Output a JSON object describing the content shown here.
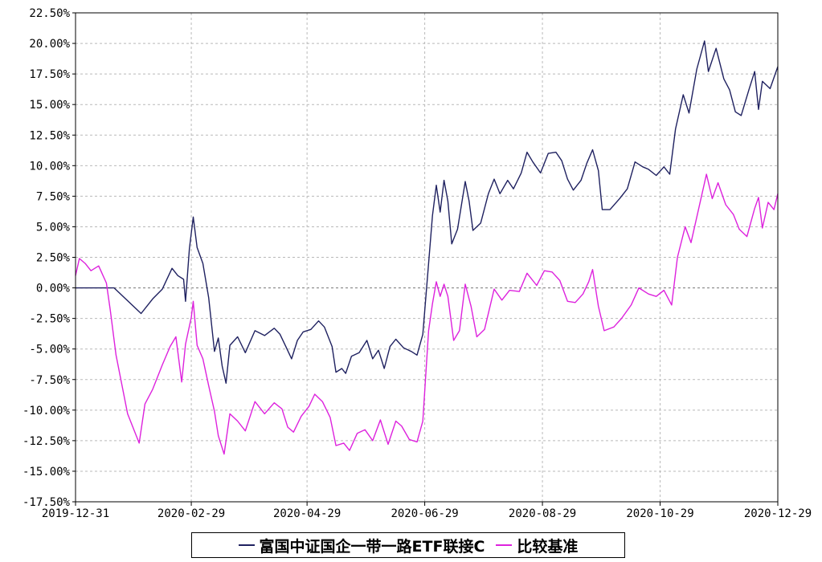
{
  "chart_data": {
    "type": "line",
    "y_ticks": [
      "22.50%",
      "20.00%",
      "17.50%",
      "15.00%",
      "12.50%",
      "10.00%",
      "7.50%",
      "5.00%",
      "2.50%",
      "0.00%",
      "-2.50%",
      "-5.00%",
      "-7.50%",
      "-10.00%",
      "-12.50%",
      "-15.00%",
      "-17.50%"
    ],
    "x_ticks": [
      "2019-12-31",
      "2020-02-29",
      "2020-04-29",
      "2020-06-29",
      "2020-08-29",
      "2020-10-29",
      "2020-12-29"
    ],
    "ylim": [
      -17.5,
      22.5
    ],
    "xlim": [
      "2019-12-31",
      "2020-12-29"
    ],
    "grid": true,
    "legend_placement": "bottom",
    "series": [
      {
        "name": "富国中证国企一带一路ETF联接C",
        "color": "#1f2160",
        "points": [
          [
            "2019-12-31",
            0.0
          ],
          [
            "2020-01-10",
            0.0
          ],
          [
            "2020-01-20",
            0.0
          ],
          [
            "2020-02-03",
            -2.1
          ],
          [
            "2020-02-09",
            -0.9
          ],
          [
            "2020-02-14",
            -0.1
          ],
          [
            "2020-02-19",
            1.6
          ],
          [
            "2020-02-22",
            1.0
          ],
          [
            "2020-02-25",
            0.7
          ],
          [
            "2020-02-26",
            -1.1
          ],
          [
            "2020-02-28",
            3.2
          ],
          [
            "2020-03-01",
            5.8
          ],
          [
            "2020-03-03",
            3.3
          ],
          [
            "2020-03-06",
            2.0
          ],
          [
            "2020-03-09",
            -0.8
          ],
          [
            "2020-03-12",
            -5.2
          ],
          [
            "2020-03-14",
            -4.1
          ],
          [
            "2020-03-16",
            -6.4
          ],
          [
            "2020-03-18",
            -7.8
          ],
          [
            "2020-03-20",
            -4.7
          ],
          [
            "2020-03-24",
            -4.0
          ],
          [
            "2020-03-28",
            -5.3
          ],
          [
            "2020-04-02",
            -3.5
          ],
          [
            "2020-04-07",
            -3.9
          ],
          [
            "2020-04-12",
            -3.3
          ],
          [
            "2020-04-15",
            -3.8
          ],
          [
            "2020-04-18",
            -4.8
          ],
          [
            "2020-04-21",
            -5.8
          ],
          [
            "2020-04-24",
            -4.3
          ],
          [
            "2020-04-27",
            -3.6
          ],
          [
            "2020-05-01",
            -3.4
          ],
          [
            "2020-05-05",
            -2.7
          ],
          [
            "2020-05-08",
            -3.2
          ],
          [
            "2020-05-12",
            -4.8
          ],
          [
            "2020-05-14",
            -6.9
          ],
          [
            "2020-05-17",
            -6.6
          ],
          [
            "2020-05-19",
            -7.0
          ],
          [
            "2020-05-22",
            -5.6
          ],
          [
            "2020-05-26",
            -5.3
          ],
          [
            "2020-05-30",
            -4.3
          ],
          [
            "2020-06-02",
            -5.8
          ],
          [
            "2020-06-05",
            -5.1
          ],
          [
            "2020-06-08",
            -6.6
          ],
          [
            "2020-06-11",
            -4.8
          ],
          [
            "2020-06-14",
            -4.2
          ],
          [
            "2020-06-18",
            -4.9
          ],
          [
            "2020-06-22",
            -5.2
          ],
          [
            "2020-06-25",
            -5.5
          ],
          [
            "2020-06-28",
            -3.8
          ],
          [
            "2020-07-01",
            2.0
          ],
          [
            "2020-07-03",
            5.9
          ],
          [
            "2020-07-05",
            8.4
          ],
          [
            "2020-07-07",
            6.2
          ],
          [
            "2020-07-09",
            8.8
          ],
          [
            "2020-07-11",
            7.1
          ],
          [
            "2020-07-13",
            3.6
          ],
          [
            "2020-07-16",
            4.8
          ],
          [
            "2020-07-20",
            8.7
          ],
          [
            "2020-07-22",
            7.1
          ],
          [
            "2020-07-24",
            4.7
          ],
          [
            "2020-07-28",
            5.3
          ],
          [
            "2020-08-01",
            7.7
          ],
          [
            "2020-08-04",
            8.9
          ],
          [
            "2020-08-07",
            7.7
          ],
          [
            "2020-08-11",
            8.8
          ],
          [
            "2020-08-14",
            8.1
          ],
          [
            "2020-08-18",
            9.4
          ],
          [
            "2020-08-21",
            11.1
          ],
          [
            "2020-08-24",
            10.3
          ],
          [
            "2020-08-28",
            9.4
          ],
          [
            "2020-09-01",
            11.0
          ],
          [
            "2020-09-05",
            11.1
          ],
          [
            "2020-09-08",
            10.4
          ],
          [
            "2020-09-11",
            8.9
          ],
          [
            "2020-09-14",
            8.0
          ],
          [
            "2020-09-18",
            8.8
          ],
          [
            "2020-09-21",
            10.2
          ],
          [
            "2020-09-24",
            11.3
          ],
          [
            "2020-09-27",
            9.6
          ],
          [
            "2020-09-29",
            6.4
          ],
          [
            "2020-10-03",
            6.4
          ],
          [
            "2020-10-08",
            7.3
          ],
          [
            "2020-10-12",
            8.1
          ],
          [
            "2020-10-16",
            10.3
          ],
          [
            "2020-10-20",
            9.9
          ],
          [
            "2020-10-23",
            9.7
          ],
          [
            "2020-10-27",
            9.2
          ],
          [
            "2020-10-31",
            9.9
          ],
          [
            "2020-11-03",
            9.3
          ],
          [
            "2020-11-06",
            13.0
          ],
          [
            "2020-11-10",
            15.8
          ],
          [
            "2020-11-13",
            14.3
          ],
          [
            "2020-11-17",
            17.9
          ],
          [
            "2020-11-21",
            20.2
          ],
          [
            "2020-11-23",
            17.7
          ],
          [
            "2020-11-27",
            19.6
          ],
          [
            "2020-12-01",
            17.1
          ],
          [
            "2020-12-04",
            16.2
          ],
          [
            "2020-12-07",
            14.4
          ],
          [
            "2020-12-10",
            14.1
          ],
          [
            "2020-12-14",
            16.2
          ],
          [
            "2020-12-17",
            17.7
          ],
          [
            "2020-12-19",
            14.6
          ],
          [
            "2020-12-21",
            16.9
          ],
          [
            "2020-12-25",
            16.3
          ],
          [
            "2020-12-29",
            18.1
          ]
        ]
      },
      {
        "name": "比较基准",
        "color": "#dd22dd",
        "points": [
          [
            "2019-12-31",
            1.0
          ],
          [
            "2020-01-02",
            2.4
          ],
          [
            "2020-01-05",
            2.0
          ],
          [
            "2020-01-08",
            1.4
          ],
          [
            "2020-01-12",
            1.8
          ],
          [
            "2020-01-16",
            0.4
          ],
          [
            "2020-01-18",
            -1.8
          ],
          [
            "2020-01-21",
            -5.5
          ],
          [
            "2020-01-27",
            -10.3
          ],
          [
            "2020-02-02",
            -12.7
          ],
          [
            "2020-02-05",
            -9.5
          ],
          [
            "2020-02-09",
            -8.3
          ],
          [
            "2020-02-14",
            -6.3
          ],
          [
            "2020-02-18",
            -4.8
          ],
          [
            "2020-02-21",
            -4.0
          ],
          [
            "2020-02-24",
            -7.7
          ],
          [
            "2020-02-26",
            -4.6
          ],
          [
            "2020-02-29",
            -2.4
          ],
          [
            "2020-03-01",
            -1.1
          ],
          [
            "2020-03-03",
            -4.7
          ],
          [
            "2020-03-06",
            -5.8
          ],
          [
            "2020-03-09",
            -8.0
          ],
          [
            "2020-03-12",
            -10.1
          ],
          [
            "2020-03-14",
            -12.1
          ],
          [
            "2020-03-17",
            -13.6
          ],
          [
            "2020-03-20",
            -10.3
          ],
          [
            "2020-03-24",
            -10.9
          ],
          [
            "2020-03-28",
            -11.7
          ],
          [
            "2020-04-02",
            -9.3
          ],
          [
            "2020-04-07",
            -10.3
          ],
          [
            "2020-04-12",
            -9.4
          ],
          [
            "2020-04-16",
            -9.9
          ],
          [
            "2020-04-19",
            -11.4
          ],
          [
            "2020-04-22",
            -11.8
          ],
          [
            "2020-04-26",
            -10.5
          ],
          [
            "2020-04-30",
            -9.7
          ],
          [
            "2020-05-03",
            -8.7
          ],
          [
            "2020-05-07",
            -9.3
          ],
          [
            "2020-05-11",
            -10.6
          ],
          [
            "2020-05-14",
            -12.9
          ],
          [
            "2020-05-18",
            -12.7
          ],
          [
            "2020-05-21",
            -13.3
          ],
          [
            "2020-05-25",
            -11.9
          ],
          [
            "2020-05-29",
            -11.6
          ],
          [
            "2020-06-02",
            -12.5
          ],
          [
            "2020-06-06",
            -10.8
          ],
          [
            "2020-06-10",
            -12.8
          ],
          [
            "2020-06-14",
            -10.9
          ],
          [
            "2020-06-17",
            -11.3
          ],
          [
            "2020-06-21",
            -12.4
          ],
          [
            "2020-06-25",
            -12.6
          ],
          [
            "2020-06-28",
            -10.9
          ],
          [
            "2020-07-01",
            -3.5
          ],
          [
            "2020-07-03",
            -1.3
          ],
          [
            "2020-07-05",
            0.5
          ],
          [
            "2020-07-07",
            -0.7
          ],
          [
            "2020-07-09",
            0.3
          ],
          [
            "2020-07-11",
            -0.7
          ],
          [
            "2020-07-14",
            -4.3
          ],
          [
            "2020-07-17",
            -3.5
          ],
          [
            "2020-07-20",
            0.3
          ],
          [
            "2020-07-23",
            -1.5
          ],
          [
            "2020-07-26",
            -4.0
          ],
          [
            "2020-07-30",
            -3.4
          ],
          [
            "2020-08-04",
            -0.1
          ],
          [
            "2020-08-08",
            -1.0
          ],
          [
            "2020-08-12",
            -0.2
          ],
          [
            "2020-08-17",
            -0.3
          ],
          [
            "2020-08-21",
            1.2
          ],
          [
            "2020-08-26",
            0.2
          ],
          [
            "2020-08-30",
            1.4
          ],
          [
            "2020-09-03",
            1.3
          ],
          [
            "2020-09-07",
            0.6
          ],
          [
            "2020-09-11",
            -1.1
          ],
          [
            "2020-09-15",
            -1.2
          ],
          [
            "2020-09-19",
            -0.5
          ],
          [
            "2020-09-22",
            0.5
          ],
          [
            "2020-09-24",
            1.5
          ],
          [
            "2020-09-27",
            -1.5
          ],
          [
            "2020-09-30",
            -3.5
          ],
          [
            "2020-10-05",
            -3.2
          ],
          [
            "2020-10-09",
            -2.5
          ],
          [
            "2020-10-14",
            -1.4
          ],
          [
            "2020-10-18",
            0.0
          ],
          [
            "2020-10-23",
            -0.5
          ],
          [
            "2020-10-27",
            -0.7
          ],
          [
            "2020-10-31",
            -0.2
          ],
          [
            "2020-11-04",
            -1.4
          ],
          [
            "2020-11-07",
            2.5
          ],
          [
            "2020-11-11",
            5.0
          ],
          [
            "2020-11-14",
            3.7
          ],
          [
            "2020-11-18",
            6.5
          ],
          [
            "2020-11-22",
            9.3
          ],
          [
            "2020-11-25",
            7.3
          ],
          [
            "2020-11-28",
            8.6
          ],
          [
            "2020-12-02",
            6.8
          ],
          [
            "2020-12-06",
            6.0
          ],
          [
            "2020-12-09",
            4.8
          ],
          [
            "2020-12-13",
            4.2
          ],
          [
            "2020-12-17",
            6.5
          ],
          [
            "2020-12-19",
            7.4
          ],
          [
            "2020-12-21",
            4.9
          ],
          [
            "2020-12-24",
            7.0
          ],
          [
            "2020-12-27",
            6.4
          ],
          [
            "2020-12-29",
            7.7
          ]
        ]
      }
    ]
  }
}
